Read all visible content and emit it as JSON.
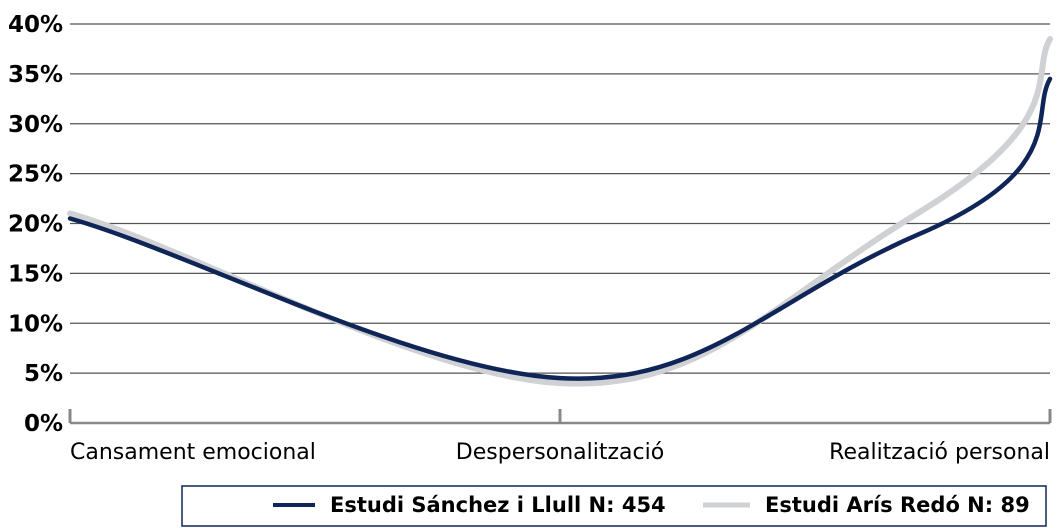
{
  "chart_data": {
    "type": "line",
    "title": "",
    "xlabel": "",
    "ylabel": "",
    "categories": [
      "Cansament emocional",
      "Despersonalització",
      "Realització personal"
    ],
    "yticks": [
      "0%",
      "5%",
      "10%",
      "15%",
      "20%",
      "25%",
      "30%",
      "35%",
      "40%"
    ],
    "ylim": [
      0,
      40
    ],
    "grid": true,
    "legend_position": "bottom-right",
    "series": [
      {
        "name": "Estudi Sánchez i Llull N: 454",
        "values": [
          20.5,
          4.5,
          34.5
        ],
        "color": "#0f2557"
      },
      {
        "name": "Estudi Arís Redó N: 89",
        "values": [
          21.0,
          4.0,
          38.5
        ],
        "color": "#cfd1d4"
      }
    ]
  }
}
